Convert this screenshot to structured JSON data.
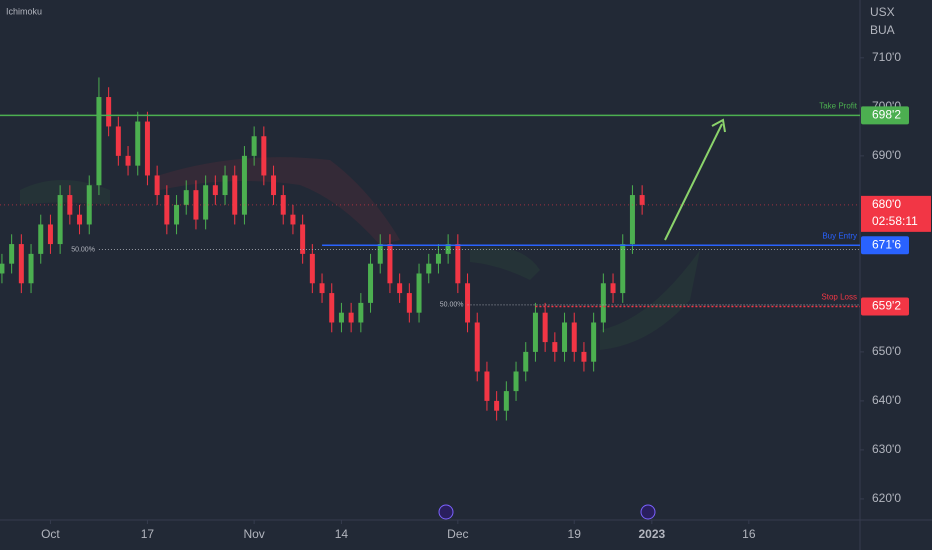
{
  "chart_data": {
    "type": "candlestick",
    "indicator": "Ichimoku",
    "symbol_labels": [
      "USX",
      "BUA"
    ],
    "open": [
      666,
      668,
      672,
      664,
      670,
      676,
      672,
      682,
      678,
      676,
      684,
      702,
      696,
      690,
      688,
      697,
      686,
      682,
      676,
      680,
      683,
      677,
      684,
      682,
      686,
      678,
      690,
      694,
      686,
      682,
      678,
      676,
      670,
      664,
      662,
      656,
      658,
      656,
      660,
      668,
      672,
      664,
      662,
      658,
      666,
      668,
      670,
      672,
      664,
      656,
      646,
      640,
      638,
      642,
      646,
      650,
      658,
      652,
      650,
      656,
      650,
      648,
      656,
      664,
      662,
      672,
      682
    ],
    "high": [
      670,
      674,
      674,
      672,
      678,
      678,
      684,
      684,
      680,
      686,
      706,
      704,
      698,
      692,
      699,
      699,
      688,
      684,
      682,
      685,
      685,
      686,
      686,
      688,
      688,
      692,
      696,
      696,
      688,
      684,
      680,
      678,
      672,
      666,
      664,
      660,
      660,
      662,
      670,
      674,
      674,
      666,
      664,
      668,
      670,
      672,
      674,
      674,
      666,
      658,
      648,
      642,
      644,
      648,
      652,
      660,
      660,
      654,
      658,
      658,
      652,
      658,
      666,
      666,
      674,
      684,
      684
    ],
    "low": [
      664,
      666,
      662,
      662,
      668,
      670,
      670,
      676,
      674,
      674,
      682,
      694,
      688,
      686,
      686,
      684,
      680,
      674,
      674,
      678,
      675,
      675,
      680,
      680,
      676,
      676,
      688,
      684,
      680,
      676,
      674,
      668,
      662,
      660,
      654,
      654,
      654,
      654,
      658,
      666,
      662,
      660,
      656,
      656,
      664,
      666,
      668,
      662,
      654,
      644,
      638,
      636,
      636,
      640,
      644,
      648,
      650,
      648,
      648,
      648,
      646,
      646,
      654,
      660,
      660,
      670,
      678
    ],
    "close": [
      668,
      672,
      664,
      670,
      676,
      672,
      682,
      678,
      676,
      684,
      702,
      696,
      690,
      688,
      697,
      686,
      682,
      676,
      680,
      683,
      677,
      684,
      682,
      686,
      678,
      690,
      694,
      686,
      682,
      678,
      676,
      670,
      664,
      662,
      656,
      658,
      656,
      660,
      668,
      672,
      664,
      662,
      658,
      666,
      668,
      670,
      672,
      664,
      656,
      646,
      640,
      638,
      642,
      646,
      650,
      658,
      652,
      650,
      656,
      650,
      648,
      656,
      664,
      662,
      672,
      682,
      680
    ],
    "up_color": "#4caf50",
    "down_color": "#f23645",
    "xlim": [
      -0.2,
      88.46
    ],
    "xticks": [
      {
        "value": 5,
        "label": "Oct"
      },
      {
        "value": 15,
        "label": "17"
      },
      {
        "value": 26,
        "label": "Nov"
      },
      {
        "value": 35,
        "label": "14"
      },
      {
        "value": 47,
        "label": "Dec"
      },
      {
        "value": 59,
        "label": "19"
      },
      {
        "value": 67,
        "label": "2023"
      },
      {
        "value": 77,
        "label": "16"
      }
    ],
    "ylim": [
      615.7,
      721.8
    ],
    "yticks": [
      {
        "value": 620,
        "label": "620'0"
      },
      {
        "value": 630,
        "label": "630'0"
      },
      {
        "value": 640,
        "label": "640'0"
      },
      {
        "value": 650,
        "label": "650'0"
      },
      {
        "value": 690,
        "label": "690'0"
      },
      {
        "value": 700,
        "label": "700'0"
      },
      {
        "value": 710,
        "label": "710'0"
      }
    ],
    "grid": false,
    "levels": [
      {
        "name": "Take Profit",
        "value": 698.25,
        "label": "698'2",
        "color": "#4caf50",
        "start": -0.2,
        "style": "solid"
      },
      {
        "name": "Buy Entry",
        "value": 671.75,
        "label": "671'6",
        "color": "#2962ff",
        "start": 33,
        "style": "solid"
      },
      {
        "name": "Stop Loss",
        "value": 659.25,
        "label": "659'2",
        "color": "#f23645",
        "start": 55,
        "style": "dotted"
      }
    ],
    "fib_levels": [
      {
        "label": "50.00%",
        "value": 670.9,
        "start": 10
      },
      {
        "label": "50.00%",
        "value": 659.6,
        "start": 48
      }
    ],
    "last_price": {
      "value": 680,
      "label": "680'0"
    },
    "countdown": "02:58:11"
  }
}
